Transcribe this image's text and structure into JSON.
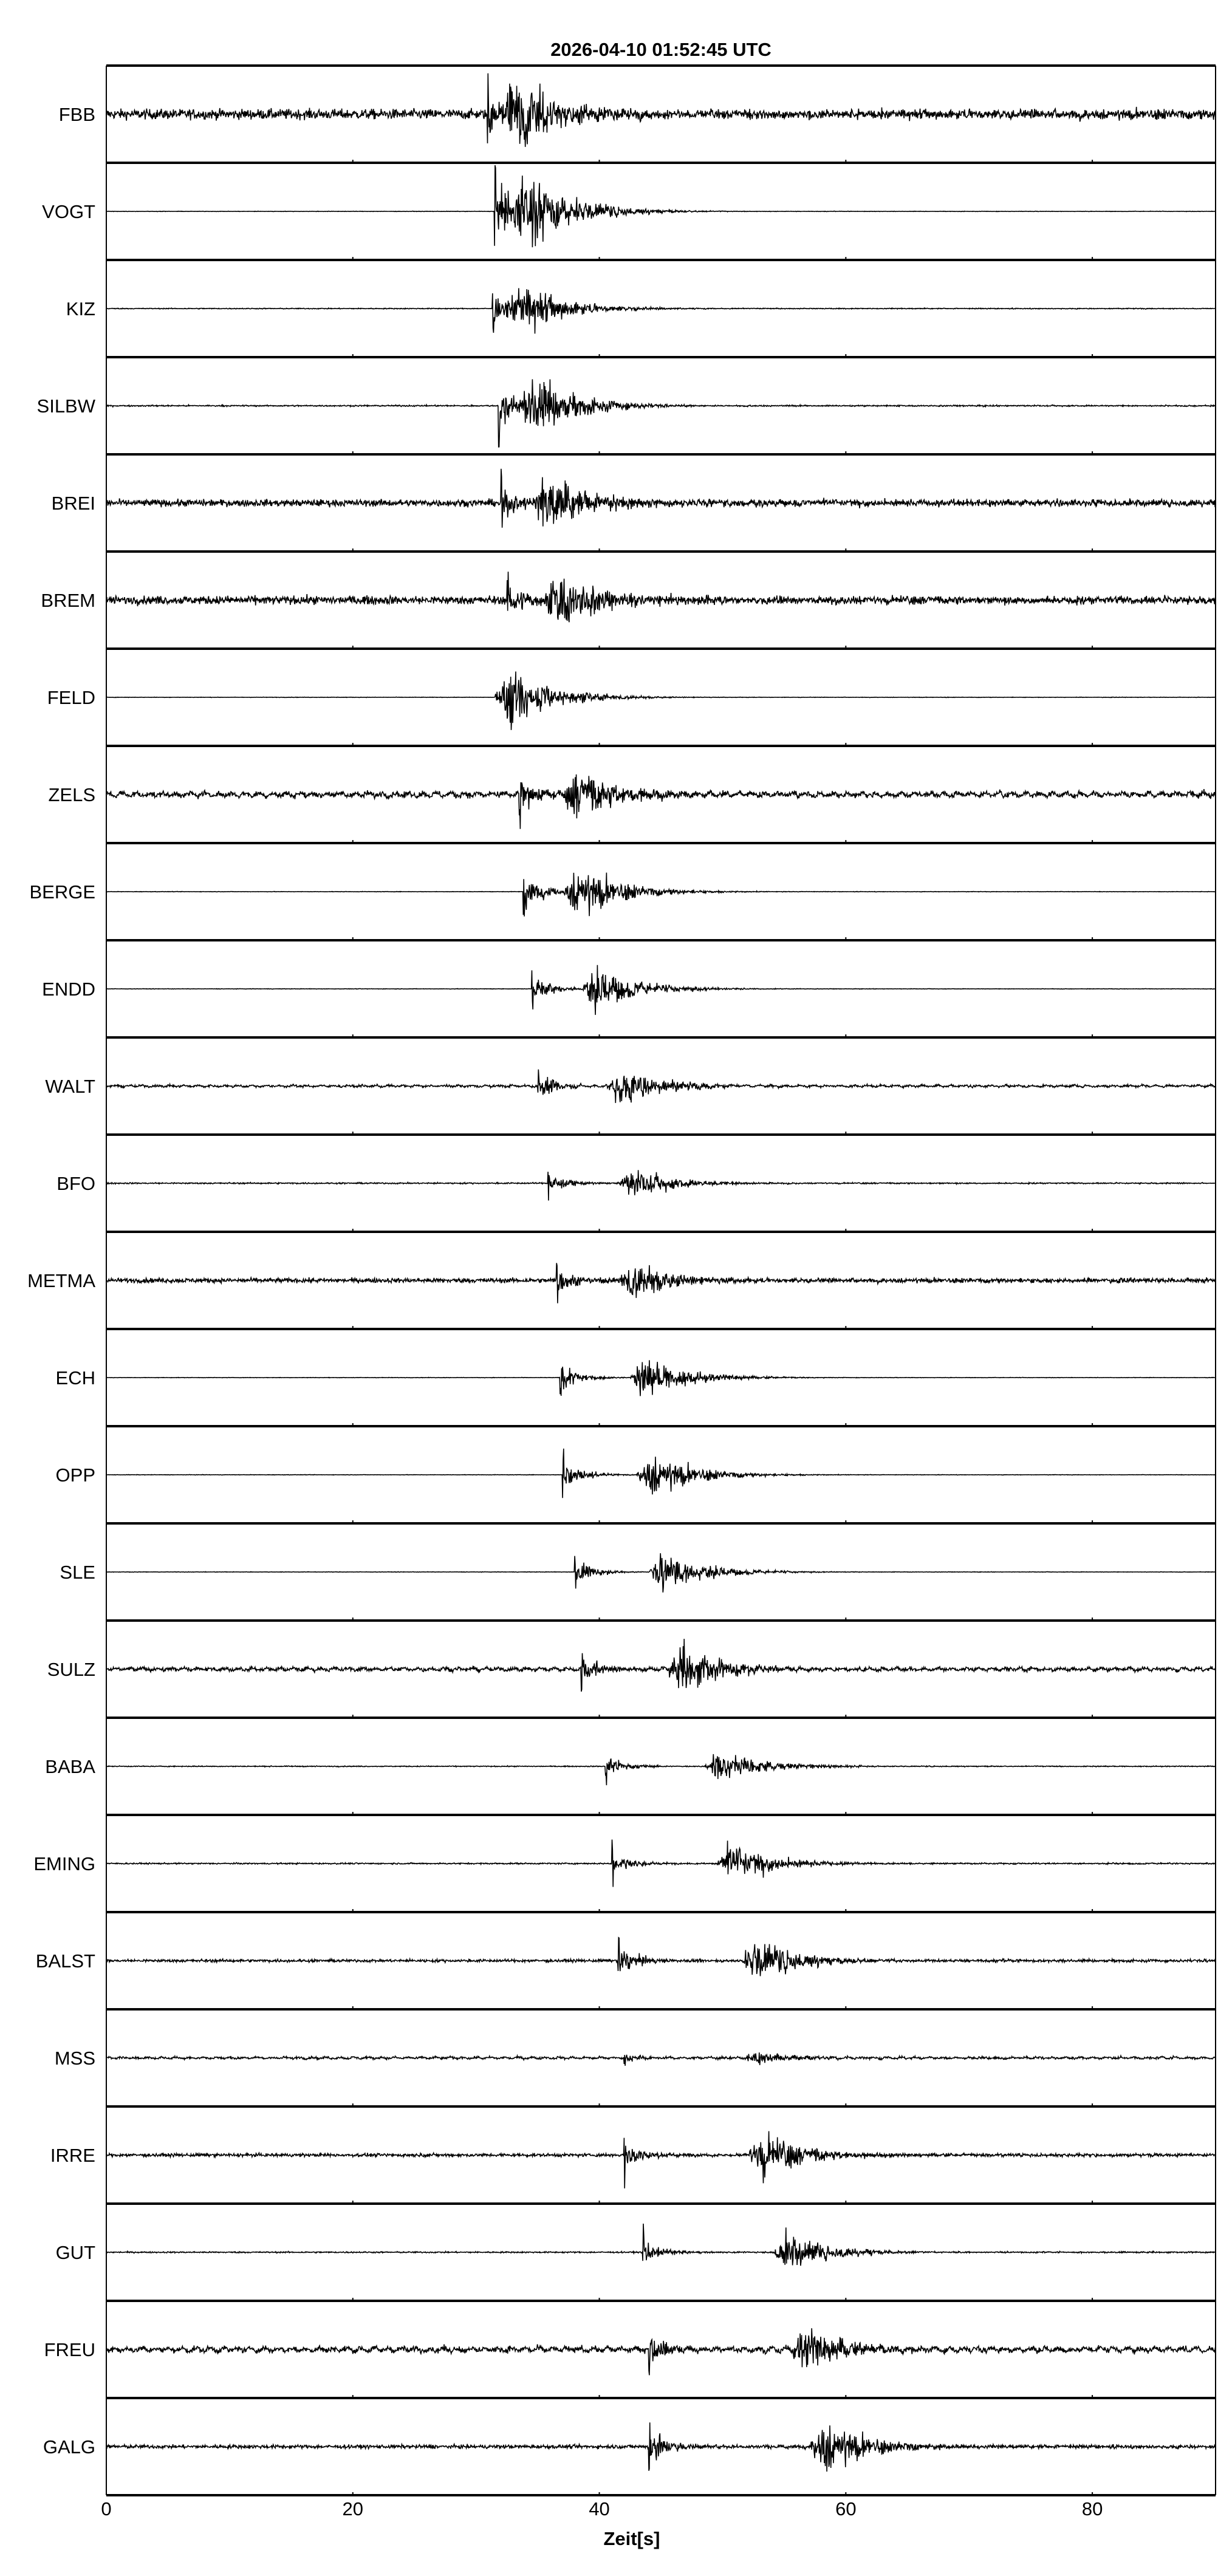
{
  "chart_data": {
    "type": "line",
    "title": "2026-04-10  01:52:45 UTC",
    "xlabel": "Zeit[s]",
    "ylabel": "",
    "xlim": [
      0,
      90
    ],
    "x_ticks": [
      "0",
      "20",
      "40",
      "60",
      "80"
    ],
    "grid": false,
    "line_color": "#000000",
    "stations": [
      {
        "name": "FBB",
        "p_onset_s": 30.9,
        "s_peak_s": 33.5,
        "noise": 0.22,
        "peak": 1.0,
        "long_period": 0
      },
      {
        "name": "VOGT",
        "p_onset_s": 31.5,
        "s_peak_s": 34.2,
        "noise": 0.01,
        "peak": 1.0,
        "long_period": 0
      },
      {
        "name": "KIZ",
        "p_onset_s": 31.3,
        "s_peak_s": 34.0,
        "noise": 0.02,
        "peak": 0.6,
        "long_period": 0
      },
      {
        "name": "SILBW",
        "p_onset_s": 31.8,
        "s_peak_s": 35.0,
        "noise": 0.03,
        "peak": 0.75,
        "long_period": 0
      },
      {
        "name": "BREI",
        "p_onset_s": 32.0,
        "s_peak_s": 36.0,
        "noise": 0.15,
        "peak": 0.7,
        "long_period": 0
      },
      {
        "name": "BREM",
        "p_onset_s": 32.5,
        "s_peak_s": 37.0,
        "noise": 0.18,
        "peak": 0.7,
        "long_period": 0
      },
      {
        "name": "FELD",
        "p_onset_s": 32.8,
        "s_peak_s": 33.0,
        "noise": 0.01,
        "peak": 0.65,
        "long_period": 0
      },
      {
        "name": "ZELS",
        "p_onset_s": 33.5,
        "s_peak_s": 38.5,
        "noise": 0.12,
        "peak": 0.6,
        "long_period": 1
      },
      {
        "name": "BERGE",
        "p_onset_s": 33.8,
        "s_peak_s": 38.6,
        "noise": 0.01,
        "peak": 0.6,
        "long_period": 0
      },
      {
        "name": "ENDD",
        "p_onset_s": 34.5,
        "s_peak_s": 40.0,
        "noise": 0.01,
        "peak": 0.5,
        "long_period": 0
      },
      {
        "name": "WALT",
        "p_onset_s": 35.0,
        "s_peak_s": 42.0,
        "noise": 0.05,
        "peak": 0.45,
        "long_period": 1
      },
      {
        "name": "BFO",
        "p_onset_s": 35.8,
        "s_peak_s": 43.0,
        "noise": 0.03,
        "peak": 0.35,
        "long_period": 0
      },
      {
        "name": "METMA",
        "p_onset_s": 36.5,
        "s_peak_s": 43.0,
        "noise": 0.1,
        "peak": 0.45,
        "long_period": 0
      },
      {
        "name": "ECH",
        "p_onset_s": 36.8,
        "s_peak_s": 44.0,
        "noise": 0.01,
        "peak": 0.45,
        "long_period": 0
      },
      {
        "name": "OPP",
        "p_onset_s": 37.0,
        "s_peak_s": 44.5,
        "noise": 0.01,
        "peak": 0.5,
        "long_period": 0
      },
      {
        "name": "SLE",
        "p_onset_s": 38.0,
        "s_peak_s": 45.5,
        "noise": 0.01,
        "peak": 0.45,
        "long_period": 0
      },
      {
        "name": "SULZ",
        "p_onset_s": 38.5,
        "s_peak_s": 47.0,
        "noise": 0.08,
        "peak": 0.55,
        "long_period": 1
      },
      {
        "name": "BABA",
        "p_onset_s": 40.5,
        "s_peak_s": 50.0,
        "noise": 0.02,
        "peak": 0.4,
        "long_period": 0
      },
      {
        "name": "EMING",
        "p_onset_s": 41.0,
        "s_peak_s": 51.0,
        "noise": 0.03,
        "peak": 0.45,
        "long_period": 0
      },
      {
        "name": "BALST",
        "p_onset_s": 41.5,
        "s_peak_s": 53.0,
        "noise": 0.06,
        "peak": 0.5,
        "long_period": 0
      },
      {
        "name": "MSS",
        "p_onset_s": 42.0,
        "s_peak_s": 53.0,
        "noise": 0.05,
        "peak": 0.15,
        "long_period": 1
      },
      {
        "name": "IRRE",
        "p_onset_s": 42.0,
        "s_peak_s": 53.5,
        "noise": 0.07,
        "peak": 0.55,
        "long_period": 0
      },
      {
        "name": "GUT",
        "p_onset_s": 43.5,
        "s_peak_s": 55.5,
        "noise": 0.03,
        "peak": 0.45,
        "long_period": 0
      },
      {
        "name": "FREU",
        "p_onset_s": 44.0,
        "s_peak_s": 57.0,
        "noise": 0.12,
        "peak": 0.55,
        "long_period": 1
      },
      {
        "name": "GALG",
        "p_onset_s": 44.0,
        "s_peak_s": 58.5,
        "noise": 0.08,
        "peak": 0.65,
        "long_period": 0
      }
    ]
  }
}
